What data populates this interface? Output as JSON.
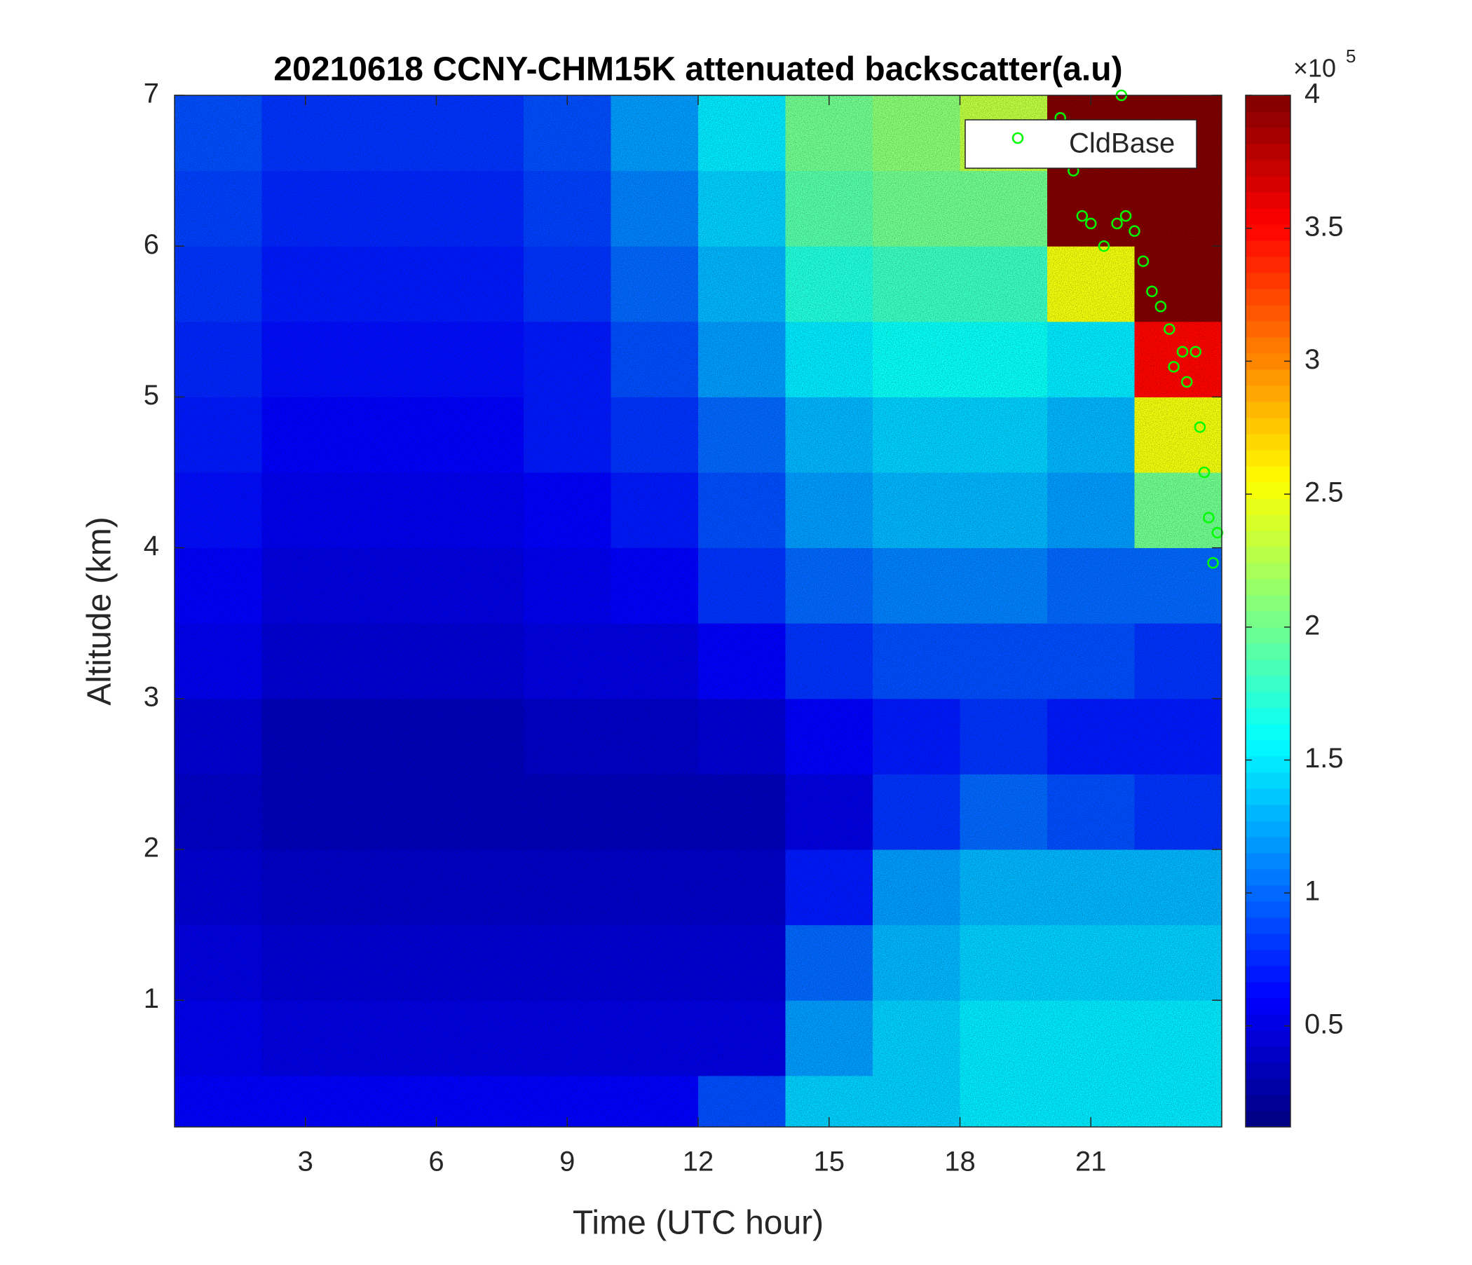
{
  "chart_data": {
    "type": "heatmap",
    "title": "20210618 CCNY-CHM15K attenuated backscatter(a.u)",
    "x_label": "Time (UTC hour)",
    "y_label": "Altitude (km)",
    "xlim": [
      0,
      24
    ],
    "ylim": [
      0.16,
      7
    ],
    "xticks": [
      3,
      6,
      9,
      12,
      15,
      18,
      21
    ],
    "yticks": [
      1,
      2,
      3,
      4,
      5,
      6,
      7
    ],
    "xbins": [
      0,
      2,
      4,
      6,
      8,
      10,
      12,
      14,
      16,
      18,
      20,
      22,
      24
    ],
    "ybins": [
      0.16,
      0.5,
      1,
      1.5,
      2,
      2.5,
      3,
      3.5,
      4,
      4.5,
      5,
      5.5,
      6,
      6.5,
      7
    ],
    "z": [
      [
        0.6,
        0.6,
        0.6,
        0.6,
        0.6,
        0.6,
        0.9,
        1.4,
        1.4,
        1.5,
        1.5,
        1.5
      ],
      [
        0.55,
        0.5,
        0.5,
        0.5,
        0.5,
        0.5,
        0.5,
        1.2,
        1.4,
        1.5,
        1.5,
        1.5
      ],
      [
        0.5,
        0.45,
        0.45,
        0.45,
        0.45,
        0.45,
        0.45,
        1.0,
        1.3,
        1.4,
        1.4,
        1.4
      ],
      [
        0.45,
        0.4,
        0.4,
        0.4,
        0.4,
        0.4,
        0.4,
        0.7,
        1.2,
        1.3,
        1.3,
        1.3
      ],
      [
        0.4,
        0.35,
        0.35,
        0.35,
        0.35,
        0.35,
        0.35,
        0.5,
        0.8,
        1.0,
        0.9,
        0.8
      ],
      [
        0.45,
        0.35,
        0.35,
        0.35,
        0.4,
        0.4,
        0.45,
        0.6,
        0.7,
        0.8,
        0.7,
        0.7
      ],
      [
        0.55,
        0.45,
        0.45,
        0.45,
        0.5,
        0.5,
        0.6,
        0.8,
        0.9,
        0.9,
        0.9,
        0.8
      ],
      [
        0.6,
        0.5,
        0.5,
        0.5,
        0.55,
        0.6,
        0.8,
        1.0,
        1.1,
        1.1,
        1.0,
        1.0
      ],
      [
        0.65,
        0.55,
        0.55,
        0.55,
        0.6,
        0.7,
        0.9,
        1.2,
        1.3,
        1.3,
        1.2,
        2.0
      ],
      [
        0.7,
        0.6,
        0.6,
        0.6,
        0.7,
        0.8,
        1.0,
        1.3,
        1.4,
        1.4,
        1.3,
        2.5
      ],
      [
        0.75,
        0.65,
        0.65,
        0.65,
        0.7,
        0.9,
        1.2,
        1.5,
        1.6,
        1.6,
        1.5,
        3.5
      ],
      [
        0.8,
        0.7,
        0.7,
        0.7,
        0.8,
        1.0,
        1.3,
        1.7,
        1.8,
        1.8,
        2.5,
        4
      ],
      [
        0.85,
        0.75,
        0.75,
        0.75,
        0.85,
        1.1,
        1.4,
        1.9,
        2.0,
        2.0,
        4,
        4
      ],
      [
        0.9,
        0.8,
        0.8,
        0.8,
        0.9,
        1.2,
        1.5,
        2.0,
        2.1,
        2.3,
        4,
        4
      ]
    ],
    "colorbar": {
      "colormap": "jet",
      "clim": [
        0.12,
        4
      ],
      "ticks": [
        0.5,
        1,
        1.5,
        2,
        2.5,
        3,
        3.5,
        4
      ],
      "label_base": "×10",
      "label_exponent": "5"
    },
    "series": [
      {
        "name": "CldBase",
        "type": "scatter",
        "color": "#00ff00",
        "x": [
          20.3,
          20.6,
          20.8,
          21.0,
          21.3,
          21.6,
          21.7,
          21.8,
          22.0,
          22.2,
          22.4,
          22.6,
          22.8,
          22.9,
          23.1,
          23.2,
          23.4,
          23.5,
          23.6,
          23.7,
          23.8,
          23.9
        ],
        "y": [
          6.85,
          6.5,
          6.2,
          6.15,
          6.0,
          6.15,
          7.0,
          6.2,
          6.1,
          5.9,
          5.7,
          5.6,
          5.45,
          5.2,
          5.3,
          5.1,
          5.3,
          4.8,
          4.5,
          4.2,
          3.9,
          4.1
        ]
      }
    ],
    "legend": "northeast"
  }
}
